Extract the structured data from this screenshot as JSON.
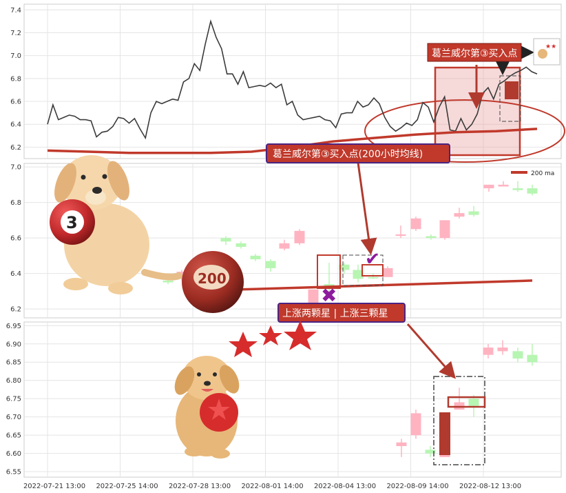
{
  "chart_data": [
    {
      "type": "line",
      "panel": "top",
      "ylim": [
        6.1,
        7.45
      ],
      "yticks": [
        "6.2",
        "6.4",
        "6.6",
        "6.8",
        "7.0",
        "7.2",
        "7.4"
      ],
      "series": [
        {
          "values": [
            6.4,
            6.57,
            6.44,
            6.46,
            6.48,
            6.47,
            6.44,
            6.44,
            6.43,
            6.29,
            6.33,
            6.34,
            6.38,
            6.46,
            6.45,
            6.41,
            6.45,
            6.36,
            6.28,
            6.5,
            6.6,
            6.58,
            6.6,
            6.62,
            6.61,
            6.77,
            6.8,
            6.93,
            6.87,
            7.1,
            7.3,
            7.16,
            7.06,
            6.84,
            6.84,
            6.75,
            6.86,
            6.72,
            6.73,
            6.74,
            6.73,
            6.76,
            6.72,
            6.75,
            6.57,
            6.6,
            6.48,
            6.44,
            6.45,
            6.46,
            6.47,
            6.44,
            6.43,
            6.37,
            6.49,
            6.5,
            6.5,
            6.6,
            6.55,
            6.57,
            6.63,
            6.58,
            6.46,
            6.38,
            6.34,
            6.37,
            6.41,
            6.39,
            6.44,
            6.59,
            6.55,
            6.42,
            6.55,
            6.64,
            6.35,
            6.34,
            6.45,
            6.35,
            6.4,
            6.49,
            6.67,
            6.72,
            6.62,
            6.75,
            6.78,
            6.82,
            6.85,
            6.87,
            6.9,
            6.86,
            6.84
          ]
        },
        {
          "values": [
            6.17,
            6.16,
            6.15,
            6.15,
            6.15,
            6.16,
            6.2,
            6.25,
            6.28,
            6.31,
            6.33,
            6.34,
            6.36
          ]
        }
      ],
      "annotations": [
        "葛兰威尔第③买入点"
      ]
    },
    {
      "type": "candlestick",
      "panel": "middle",
      "ylim": [
        6.15,
        7.02
      ],
      "yticks": [
        "6.2",
        "6.4",
        "6.6",
        "6.8",
        "7.0"
      ],
      "legend": [
        {
          "label": "200 ma",
          "color": "#c0392b"
        }
      ],
      "candles": [
        {
          "o": 6.35,
          "h": 6.37,
          "l": 6.34,
          "c": 6.36,
          "up": false
        },
        {
          "o": 6.38,
          "h": 6.42,
          "l": 6.36,
          "c": 6.41,
          "up": true
        },
        {
          "o": 6.58,
          "h": 6.61,
          "l": 6.56,
          "c": 6.6,
          "up": false
        },
        {
          "o": 6.57,
          "h": 6.58,
          "l": 6.54,
          "c": 6.55,
          "up": false
        },
        {
          "o": 6.5,
          "h": 6.51,
          "l": 6.47,
          "c": 6.48,
          "up": false
        },
        {
          "o": 6.47,
          "h": 6.48,
          "l": 6.41,
          "c": 6.43,
          "up": false
        },
        {
          "o": 6.54,
          "h": 6.59,
          "l": 6.53,
          "c": 6.57,
          "up": true
        },
        {
          "o": 6.57,
          "h": 6.65,
          "l": 6.56,
          "c": 6.64,
          "up": true
        },
        {
          "o": 6.23,
          "h": 6.31,
          "l": 6.22,
          "c": 6.31,
          "up": true
        },
        {
          "o": 6.34,
          "h": 6.46,
          "l": 6.26,
          "c": 6.33,
          "up": false
        },
        {
          "o": 6.45,
          "h": 6.46,
          "l": 6.4,
          "c": 6.42,
          "up": false
        },
        {
          "o": 6.42,
          "h": 6.45,
          "l": 6.35,
          "c": 6.37,
          "up": false
        },
        {
          "o": 6.38,
          "h": 6.4,
          "l": 6.37,
          "c": 6.38,
          "up": false
        },
        {
          "o": 6.38,
          "h": 6.44,
          "l": 6.38,
          "c": 6.43,
          "up": true
        },
        {
          "o": 6.62,
          "h": 6.67,
          "l": 6.6,
          "c": 6.62,
          "up": true
        },
        {
          "o": 6.65,
          "h": 6.72,
          "l": 6.64,
          "c": 6.71,
          "up": true
        },
        {
          "o": 6.61,
          "h": 6.62,
          "l": 6.59,
          "c": 6.6,
          "up": false
        },
        {
          "o": 6.6,
          "h": 6.7,
          "l": 6.59,
          "c": 6.7,
          "up": true
        },
        {
          "o": 6.74,
          "h": 6.77,
          "l": 6.71,
          "c": 6.72,
          "up": true
        },
        {
          "o": 6.75,
          "h": 6.78,
          "l": 6.72,
          "c": 6.73,
          "up": false
        },
        {
          "o": 6.88,
          "h": 6.9,
          "l": 6.86,
          "c": 6.9,
          "up": true
        },
        {
          "o": 6.9,
          "h": 6.92,
          "l": 6.89,
          "c": 6.89,
          "up": true
        },
        {
          "o": 6.87,
          "h": 6.92,
          "l": 6.86,
          "c": 6.88,
          "up": false
        },
        {
          "o": 6.85,
          "h": 6.9,
          "l": 6.84,
          "c": 6.88,
          "up": false
        }
      ],
      "ma200": [
        6.31,
        6.36
      ],
      "annotations": [
        "葛兰威尔第③买入点(200小时均线)"
      ]
    },
    {
      "type": "candlestick",
      "panel": "bottom",
      "ylim": [
        6.535,
        6.96
      ],
      "yticks": [
        "6.55",
        "6.60",
        "6.65",
        "6.70",
        "6.75",
        "6.80",
        "6.85",
        "6.90",
        "6.95"
      ],
      "candles": [
        {
          "o": 6.62,
          "h": 6.64,
          "l": 6.59,
          "c": 6.63,
          "up": true
        },
        {
          "o": 6.65,
          "h": 6.72,
          "l": 6.64,
          "c": 6.71,
          "up": true
        },
        {
          "o": 6.61,
          "h": 6.62,
          "l": 6.59,
          "c": 6.6,
          "up": false
        },
        {
          "o": 6.59,
          "h": 6.71,
          "l": 6.59,
          "c": 6.71,
          "up": true
        },
        {
          "o": 6.74,
          "h": 6.78,
          "l": 6.72,
          "c": 6.72,
          "up": true
        },
        {
          "o": 6.75,
          "h": 6.76,
          "l": 6.7,
          "c": 6.73,
          "up": false
        },
        {
          "o": 6.87,
          "h": 6.9,
          "l": 6.86,
          "c": 6.89,
          "up": true
        },
        {
          "o": 6.89,
          "h": 6.91,
          "l": 6.87,
          "c": 6.88,
          "up": true
        },
        {
          "o": 6.88,
          "h": 6.89,
          "l": 6.85,
          "c": 6.86,
          "up": false
        },
        {
          "o": 6.87,
          "h": 6.9,
          "l": 6.84,
          "c": 6.85,
          "up": false
        }
      ],
      "annotations": [
        "上涨两颗星 | 上涨三颗星"
      ]
    }
  ],
  "x_axis": {
    "labels": [
      "2022-07-21 13:00",
      "2022-07-25 14:00",
      "2022-07-28 13:00",
      "2022-08-01 14:00",
      "2022-08-04 13:00",
      "2022-08-09 14:00",
      "2022-08-12 13:00"
    ]
  },
  "decorations": {
    "ball_three": "3",
    "ball_200": "200",
    "callout_color": "#c0392b",
    "callout_border": "#4a2382"
  }
}
